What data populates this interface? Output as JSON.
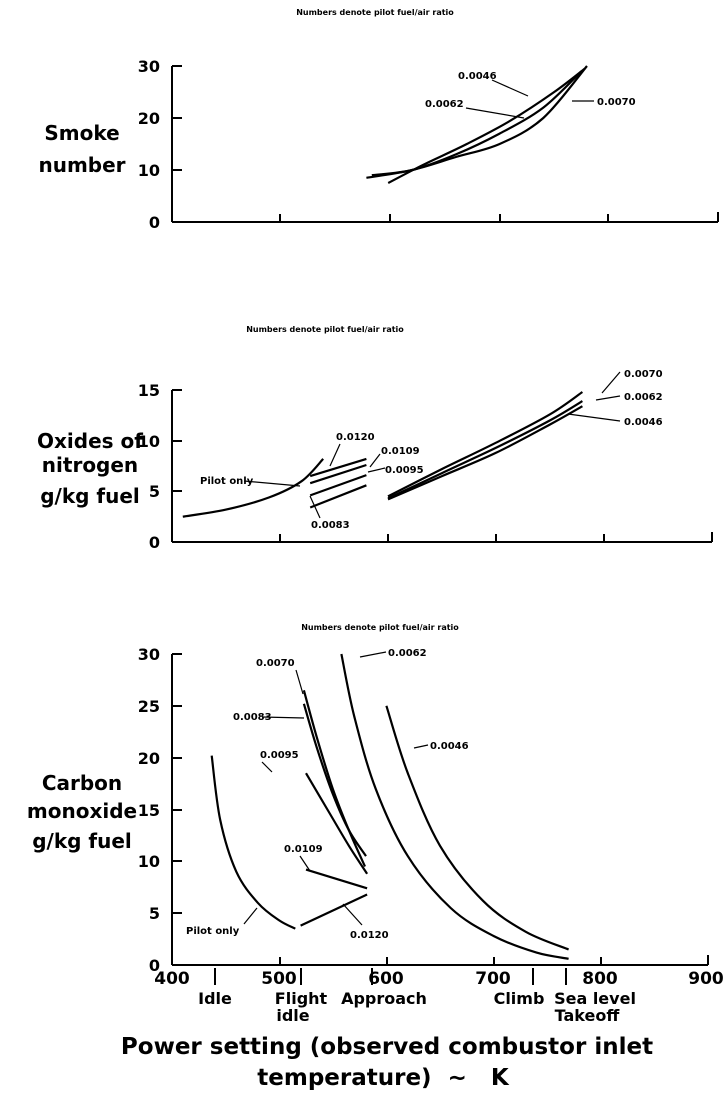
{
  "chart_data": [
    {
      "type": "line",
      "note": "Numbers denote pilot fuel/air ratio",
      "ylabel": [
        "Smoke",
        "number"
      ],
      "ylim": [
        0,
        30
      ],
      "yticks": [
        "0",
        "10",
        "20",
        "30"
      ],
      "xlim": [
        400,
        900
      ],
      "series": [
        {
          "name": "0.0046",
          "x": [
            598,
            630,
            670,
            710,
            750,
            778
          ],
          "y": [
            7.5,
            11,
            15,
            19.5,
            25,
            29.5
          ]
        },
        {
          "name": "0.0062",
          "x": [
            583,
            620,
            660,
            700,
            740,
            775
          ],
          "y": [
            9,
            10,
            13,
            17,
            22,
            29
          ]
        },
        {
          "name": "0.0070",
          "x": [
            578,
            620,
            660,
            700,
            740,
            780
          ],
          "y": [
            8.5,
            10,
            12.5,
            15,
            20,
            30
          ]
        }
      ]
    },
    {
      "type": "line",
      "note": "Numbers denote pilot fuel/air ratio",
      "ylabel": [
        "Oxides of",
        "nitrogen",
        "g/kg fuel"
      ],
      "ylim": [
        0,
        15
      ],
      "yticks": [
        "0",
        "5",
        "10",
        "15"
      ],
      "xlim": [
        400,
        900
      ],
      "series": [
        {
          "name": "Pilot only",
          "x": [
            410,
            450,
            490,
            520,
            540
          ],
          "y": [
            2.5,
            3.2,
            4.4,
            6.0,
            8.2
          ]
        },
        {
          "name": "0.0120",
          "x": [
            528,
            580
          ],
          "y": [
            6.5,
            8.2
          ]
        },
        {
          "name": "0.0109",
          "x": [
            528,
            580
          ],
          "y": [
            5.8,
            7.6
          ]
        },
        {
          "name": "0.0095",
          "x": [
            528,
            580
          ],
          "y": [
            4.6,
            6.6
          ]
        },
        {
          "name": "0.0083",
          "x": [
            528,
            580
          ],
          "y": [
            3.4,
            5.6
          ]
        },
        {
          "name": "0.0070",
          "x": [
            600,
            650,
            700,
            750,
            780
          ],
          "y": [
            4.5,
            7.2,
            9.8,
            12.6,
            14.8
          ]
        },
        {
          "name": "0.0062",
          "x": [
            600,
            650,
            700,
            750,
            780
          ],
          "y": [
            4.3,
            6.8,
            9.3,
            12.0,
            13.9
          ]
        },
        {
          "name": "0.0046",
          "x": [
            600,
            650,
            700,
            750,
            780
          ],
          "y": [
            4.2,
            6.5,
            8.8,
            11.6,
            13.4
          ]
        }
      ]
    },
    {
      "type": "line",
      "note": "Numbers denote pilot fuel/air ratio",
      "ylabel": [
        "Carbon",
        "monoxide",
        "g/kg fuel"
      ],
      "ylim": [
        0,
        30
      ],
      "yticks": [
        "0",
        "5",
        "10",
        "15",
        "20",
        "25",
        "30"
      ],
      "xlim": [
        400,
        900
      ],
      "xticks": [
        "400",
        "500",
        "600",
        "700",
        "800",
        "900"
      ],
      "xlabel": [
        "Power setting (observed combustor inlet",
        "temperature)  ~   K"
      ],
      "phases": [
        {
          "label": [
            "Idle"
          ],
          "x": 440
        },
        {
          "label": [
            "Flight",
            "idle"
          ],
          "x": 525
        },
        {
          "label": [
            "Approach"
          ],
          "x": 583
        },
        {
          "label": [
            "Climb"
          ],
          "x": 735
        },
        {
          "label": [
            "Sea level",
            "Takeoff"
          ],
          "x": 773
        }
      ],
      "series": [
        {
          "name": "Pilot only",
          "x": [
            437,
            445,
            460,
            480,
            500,
            515
          ],
          "y": [
            20.2,
            14,
            9,
            6,
            4.3,
            3.5
          ]
        },
        {
          "name": "0.0070",
          "x": [
            523,
            535,
            550,
            565,
            580
          ],
          "y": [
            26.5,
            22,
            17,
            13,
            9.5
          ]
        },
        {
          "name": "0.0083",
          "x": [
            523,
            535,
            550,
            565,
            581
          ],
          "y": [
            25.2,
            21,
            16.5,
            13,
            10.5
          ]
        },
        {
          "name": "0.0095",
          "x": [
            525,
            545,
            565,
            582
          ],
          "y": [
            18.5,
            15,
            11.5,
            8.8
          ]
        },
        {
          "name": "0.0109",
          "x": [
            525,
            582
          ],
          "y": [
            9.2,
            7.4
          ]
        },
        {
          "name": "0.0120",
          "x": [
            520,
            582
          ],
          "y": [
            3.8,
            6.8
          ]
        },
        {
          "name": "0.0062",
          "x": [
            558,
            570,
            590,
            620,
            660,
            700,
            740,
            770
          ],
          "y": [
            30,
            24,
            17,
            10.5,
            5.5,
            2.8,
            1.2,
            0.6
          ]
        },
        {
          "name": "0.0046",
          "x": [
            600,
            620,
            650,
            690,
            730,
            770
          ],
          "y": [
            25,
            18.5,
            11.5,
            6.2,
            3.2,
            1.5
          ]
        }
      ]
    }
  ]
}
